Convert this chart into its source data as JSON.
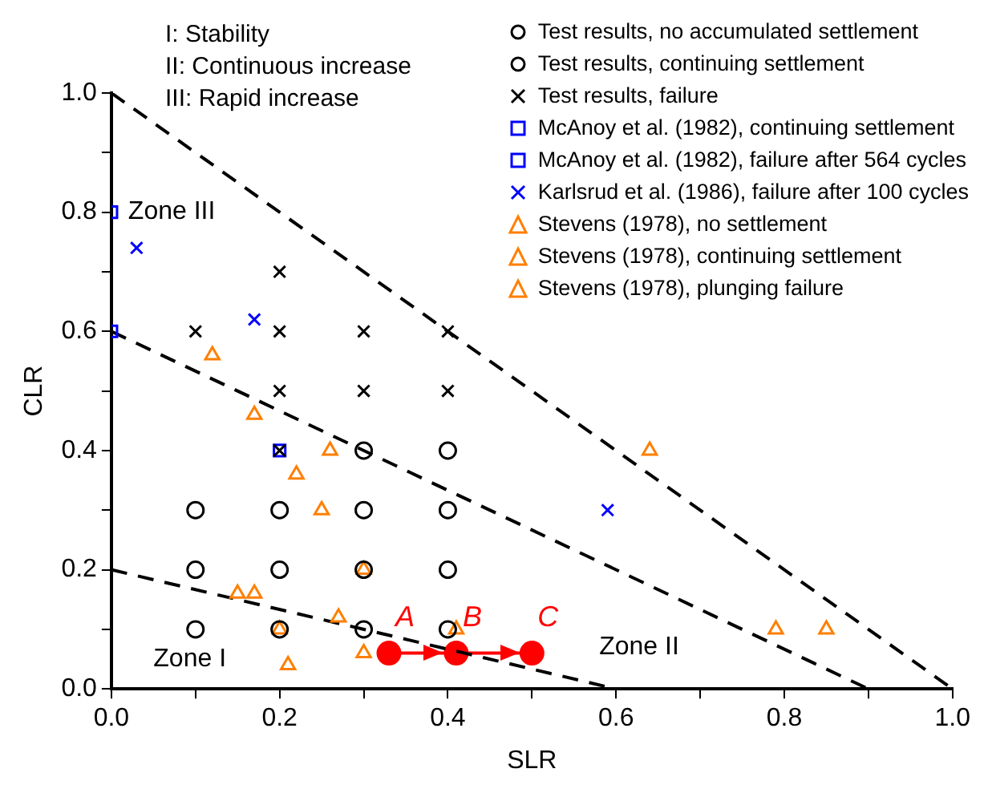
{
  "chart_data": {
    "type": "scatter",
    "xlabel": "SLR",
    "ylabel": "CLR",
    "xlim": [
      0,
      1.0
    ],
    "ylim": [
      0,
      1.0
    ],
    "xticks": [
      {
        "value": 0,
        "label": "0.0"
      },
      {
        "value": 0.1,
        "label": null
      },
      {
        "value": 0.2,
        "label": "0.2"
      },
      {
        "value": 0.3,
        "label": null
      },
      {
        "value": 0.4,
        "label": "0.4"
      },
      {
        "value": 0.5,
        "label": null
      },
      {
        "value": 0.6,
        "label": "0.6"
      },
      {
        "value": 0.7,
        "label": null
      },
      {
        "value": 0.8,
        "label": "0.8"
      },
      {
        "value": 0.9,
        "label": null
      },
      {
        "value": 1.0,
        "label": "1.0"
      }
    ],
    "yticks": [
      {
        "value": 0,
        "label": "0.0"
      },
      {
        "value": 0.1,
        "label": null
      },
      {
        "value": 0.2,
        "label": "0.2"
      },
      {
        "value": 0.3,
        "label": null
      },
      {
        "value": 0.4,
        "label": "0.4"
      },
      {
        "value": 0.5,
        "label": null
      },
      {
        "value": 0.6,
        "label": "0.6"
      },
      {
        "value": 0.7,
        "label": null
      },
      {
        "value": 0.8,
        "label": "0.8"
      },
      {
        "value": 0.9,
        "label": null
      },
      {
        "value": 1.0,
        "label": "1.0"
      }
    ],
    "grid": false,
    "legend": "top right",
    "annotations": [
      "I: Stability",
      "II: Continuous increase",
      "III: Rapid increase",
      "Zone III",
      "Zone I",
      "Zone II",
      {
        "text": "A",
        "x": 0.33,
        "y": 0.06
      },
      {
        "text": "B",
        "x": 0.41,
        "y": 0.06
      },
      {
        "text": "C",
        "x": 0.5,
        "y": 0.06
      }
    ],
    "series": [
      {
        "name": "Test results, no accumulated settlement",
        "color": "#000000",
        "marker": "circle",
        "x": [
          0.1,
          0.2,
          0.4
        ],
        "values": [
          0.1,
          0.1,
          0.1
        ]
      },
      {
        "name": "Test results, continuing settlement",
        "color": "#000000",
        "marker": "circle",
        "x": [
          0.3,
          0.1,
          0.2,
          0.3,
          0.4,
          0.1,
          0.2,
          0.3,
          0.4,
          0.3,
          0.4
        ],
        "values": [
          0.1,
          0.2,
          0.2,
          0.2,
          0.2,
          0.3,
          0.3,
          0.3,
          0.3,
          0.4,
          0.4
        ]
      },
      {
        "name": "Test results, failure",
        "color": "#000000",
        "marker": "cross",
        "x": [
          0.2,
          0.2,
          0.3,
          0.4,
          0.1,
          0.2,
          0.3,
          0.4,
          0.2
        ],
        "values": [
          0.4,
          0.5,
          0.5,
          0.5,
          0.6,
          0.6,
          0.6,
          0.6,
          0.7
        ]
      },
      {
        "name": "McAnoy et al. (1982), continuing settlement",
        "color": "#0000ff",
        "marker": "square",
        "x": [
          0.2
        ],
        "values": [
          0.4
        ]
      },
      {
        "name": "McAnoy et al. (1982), failure after 564 cycles",
        "color": "#0000ff",
        "marker": "square",
        "x": [
          0,
          0
        ],
        "values": [
          0.6,
          0.8
        ]
      },
      {
        "name": "Karlsrud et al. (1986), failure after 100 cycles",
        "color": "#0000ff",
        "marker": "cross",
        "x": [
          0.03,
          0.17,
          0.59
        ],
        "values": [
          0.74,
          0.62,
          0.3
        ]
      },
      {
        "name": "Stevens (1978), no settlement",
        "color": "#ff7f00",
        "marker": "triangle",
        "x": [
          0.15,
          0.17,
          0.2,
          0.21,
          0.27,
          0.3,
          0.41
        ],
        "values": [
          0.16,
          0.16,
          0.1,
          0.04,
          0.12,
          0.06,
          0.1
        ]
      },
      {
        "name": "Stevens (1978), continuing settlement",
        "color": "#ff7f00",
        "marker": "triangle",
        "x": [
          0.12,
          0.17,
          0.26,
          0.22,
          0.25,
          0.3,
          0.79
        ],
        "values": [
          0.56,
          0.46,
          0.4,
          0.36,
          0.3,
          0.2,
          0.1
        ]
      },
      {
        "name": "Stevens (1978), plunging failure",
        "color": "#ff7f00",
        "marker": "triangle",
        "x": [
          0.64,
          0.85
        ],
        "values": [
          0.4,
          0.1
        ]
      },
      {
        "type": "line",
        "color": "#000000",
        "marker": "none",
        "line_style": "dashed",
        "x": [
          0,
          1.0
        ],
        "values": [
          1.0,
          0
        ]
      },
      {
        "type": "line",
        "color": "#000000",
        "marker": "none",
        "line_style": "dashed",
        "x": [
          0,
          0.9
        ],
        "values": [
          0.6,
          0
        ]
      },
      {
        "type": "line",
        "color": "#000000",
        "marker": "none",
        "line_style": "dashed",
        "x": [
          0,
          0.6
        ],
        "values": [
          0.2,
          0
        ]
      },
      {
        "type": "line",
        "color": "#ff0000",
        "marker": "circle",
        "line_style": "solid",
        "x": [
          0.33,
          0.41,
          0.5
        ],
        "values": [
          0.06,
          0.06,
          0.06
        ]
      }
    ]
  }
}
